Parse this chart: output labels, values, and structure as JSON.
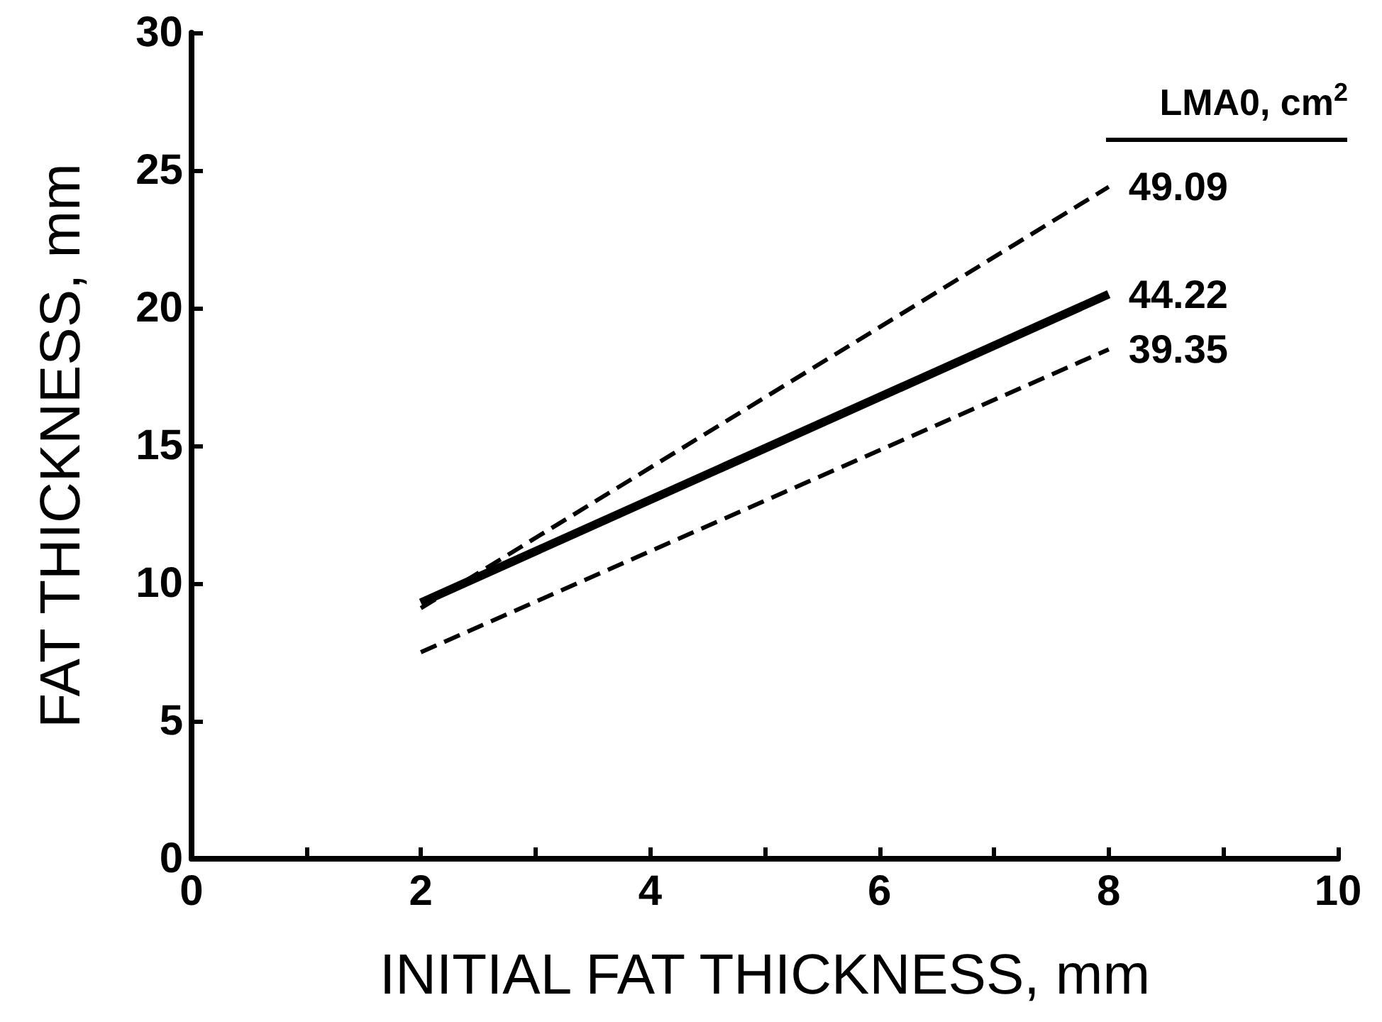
{
  "chart_data": {
    "type": "line",
    "xlabel": "INITIAL FAT THICKNESS, mm",
    "ylabel": "FAT THICKNESS, mm",
    "legend_title": "LMA0, cm$^{2}$",
    "x": [
      2,
      8
    ],
    "series": [
      {
        "name": "49.09",
        "color": "#000000",
        "values": [
          9.1,
          24.4
        ],
        "line_style": "dashed"
      },
      {
        "name": "44.22",
        "color": "#000000",
        "values": [
          9.3,
          20.5
        ],
        "line_style": "solid"
      },
      {
        "name": "39.35",
        "color": "#000000",
        "values": [
          7.5,
          18.5
        ],
        "line_style": "dashed"
      }
    ],
    "xlim": [
      0,
      10
    ],
    "xticks": [
      0,
      {
        "value": 1,
        "label": null
      },
      2,
      {
        "value": 3,
        "label": null
      },
      4,
      {
        "value": 5,
        "label": null
      },
      6,
      {
        "value": 7,
        "label": null
      },
      8,
      {
        "value": 9,
        "label": null
      },
      10
    ],
    "ylim": [
      0,
      30
    ],
    "yticks": [
      0,
      5,
      10,
      15,
      20,
      25,
      30
    ],
    "grid": false,
    "legend": false,
    "marker": "none"
  }
}
